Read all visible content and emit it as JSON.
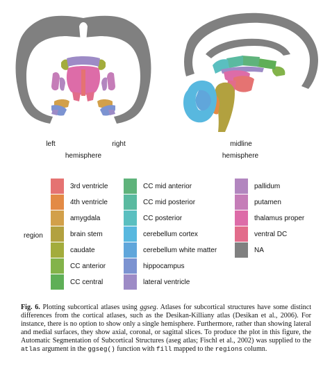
{
  "views": {
    "coronal": {
      "left_label": "left",
      "right_label": "right",
      "sub_label": "hemisphere"
    },
    "sagittal": {
      "label": "midline",
      "sub_label": "hemisphere"
    }
  },
  "legend": {
    "title": "region",
    "items": [
      {
        "label": "3rd ventricle",
        "color": "#E57372"
      },
      {
        "label": "4th ventricle",
        "color": "#E38A45"
      },
      {
        "label": "amygdala",
        "color": "#D2A04A"
      },
      {
        "label": "brain stem",
        "color": "#B2A13F"
      },
      {
        "label": "caudate",
        "color": "#A3AC3C"
      },
      {
        "label": "CC anterior",
        "color": "#83B34A"
      },
      {
        "label": "CC central",
        "color": "#5FAF57"
      },
      {
        "label": "CC mid anterior",
        "color": "#5FB37B"
      },
      {
        "label": "CC mid posterior",
        "color": "#5ABAA0"
      },
      {
        "label": "CC posterior",
        "color": "#5ABFC0"
      },
      {
        "label": "cerebellum cortex",
        "color": "#58B8DF"
      },
      {
        "label": "cerebellum white matter",
        "color": "#60A6DB"
      },
      {
        "label": "hippocampus",
        "color": "#7C93D1"
      },
      {
        "label": "lateral ventricle",
        "color": "#9D8BC6"
      },
      {
        "label": "pallidum",
        "color": "#B286BF"
      },
      {
        "label": "putamen",
        "color": "#C57DB8"
      },
      {
        "label": "thalamus proper",
        "color": "#DD6CA8"
      },
      {
        "label": "ventral DC",
        "color": "#E26C8B"
      },
      {
        "label": "NA",
        "color": "#808080"
      }
    ]
  },
  "caption": {
    "fig_label": "Fig. 6.",
    "s1a": "Plotting subcortical atlases using ",
    "s1b": "ggseg",
    "s1c": ". Atlases for subcortical structures have some distinct differences from the cortical atlases, such as the Desikan-Killiany atlas (Desikan et al., 2006). For instance, there is no option to show only a single hemisphere. Furthermore, rather than showing lateral and medial surfaces, they show axial, coronal, or sagittal slices. To produce the plot in this figure, the Automatic Segmentation of Subcortical Structures (aseg atlas; Fischl et al., 2002) was supplied to the ",
    "c_atlas": "atlas",
    "s2": " argument in the ",
    "c_ggseg": "ggseg()",
    "s3": " function with ",
    "c_fill": "fill",
    "s4": " mapped to the ",
    "c_regions": "regions",
    "s5": " column."
  }
}
